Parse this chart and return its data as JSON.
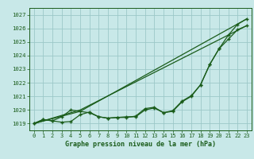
{
  "title": "Graphe pression niveau de la mer (hPa)",
  "background_color": "#c8e8e8",
  "grid_color": "#9cc8c8",
  "line_color": "#1a5c1a",
  "text_color": "#1a5c1a",
  "xlim": [
    -0.5,
    23.5
  ],
  "ylim": [
    1018.5,
    1027.5
  ],
  "xticks": [
    0,
    1,
    2,
    3,
    4,
    5,
    6,
    7,
    8,
    9,
    10,
    11,
    12,
    13,
    14,
    15,
    16,
    17,
    18,
    19,
    20,
    21,
    22,
    23
  ],
  "yticks": [
    1019,
    1020,
    1021,
    1022,
    1023,
    1024,
    1025,
    1026,
    1027
  ],
  "line1_x": [
    0,
    1,
    2,
    3,
    4,
    5,
    6,
    7,
    8,
    9,
    10,
    11,
    12,
    13,
    14,
    15,
    16,
    17,
    18,
    19,
    20,
    21,
    22,
    23
  ],
  "line1_y": [
    1019.0,
    1019.3,
    1019.2,
    1019.1,
    1019.15,
    1019.65,
    1019.85,
    1019.5,
    1019.4,
    1019.45,
    1019.45,
    1019.55,
    1020.1,
    1020.2,
    1019.8,
    1019.95,
    1020.65,
    1021.05,
    1021.85,
    1023.35,
    1024.5,
    1025.5,
    1026.3,
    1026.7
  ],
  "line2_x": [
    0,
    1,
    2,
    3,
    4,
    5,
    6,
    7,
    8,
    9,
    10,
    11,
    12,
    13,
    14,
    15,
    16,
    17,
    18,
    19,
    20,
    21,
    22,
    23
  ],
  "line2_y": [
    1019.0,
    1019.3,
    1019.2,
    1019.5,
    1020.0,
    1019.9,
    1019.8,
    1019.5,
    1019.4,
    1019.45,
    1019.5,
    1019.5,
    1020.0,
    1020.15,
    1019.8,
    1019.9,
    1020.6,
    1021.0,
    1021.85,
    1023.35,
    1024.5,
    1025.2,
    1025.9,
    1026.2
  ],
  "line3_x": [
    0,
    5,
    23
  ],
  "line3_y": [
    1019.0,
    1019.9,
    1026.7
  ],
  "line4_x": [
    0,
    5,
    23
  ],
  "line4_y": [
    1019.0,
    1020.0,
    1026.2
  ]
}
